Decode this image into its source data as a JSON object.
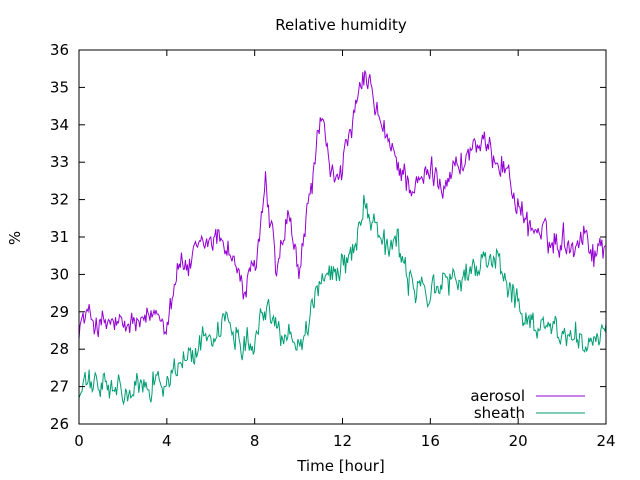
{
  "chart_data": {
    "type": "line",
    "title": "Relative humidity",
    "xlabel": "Time [hour]",
    "ylabel": "%",
    "xlim": [
      0,
      24
    ],
    "ylim": [
      26,
      36
    ],
    "xticks": [
      0,
      4,
      8,
      12,
      16,
      20,
      24
    ],
    "yticks": [
      26,
      27,
      28,
      29,
      30,
      31,
      32,
      33,
      34,
      35,
      36
    ],
    "grid": false,
    "legend_position": "bottom-right",
    "x": [
      0,
      0.5,
      1,
      1.5,
      2,
      2.5,
      3,
      3.5,
      4,
      4.5,
      5,
      5.5,
      6,
      6.5,
      7,
      7.5,
      8,
      8.5,
      9,
      9.5,
      10,
      10.5,
      11,
      11.5,
      12,
      12.5,
      13,
      13.5,
      14,
      14.5,
      15,
      15.5,
      16,
      16.5,
      17,
      17.5,
      18,
      18.5,
      19,
      19.5,
      20,
      20.5,
      21,
      21.5,
      22,
      22.5,
      23,
      23.5,
      24
    ],
    "series": [
      {
        "name": "aerosol",
        "color": "#9400d3",
        "values": [
          28.7,
          28.9,
          28.6,
          28.7,
          28.5,
          28.7,
          28.6,
          29.0,
          28.8,
          30.3,
          30.2,
          30.6,
          30.9,
          31.0,
          30.5,
          29.5,
          30.1,
          32.3,
          30.0,
          31.5,
          30.0,
          32.0,
          34.2,
          32.5,
          33.0,
          34.0,
          35.3,
          34.5,
          33.5,
          33.0,
          32.5,
          32.3,
          32.8,
          32.5,
          32.8,
          33.0,
          33.5,
          33.3,
          33.2,
          32.8,
          31.8,
          31.3,
          31.1,
          30.8,
          31.0,
          30.8,
          31.2,
          30.5,
          31.0
        ]
      },
      {
        "name": "sheath",
        "color": "#009e73",
        "values": [
          26.8,
          27.1,
          27.0,
          26.9,
          26.8,
          26.8,
          27.0,
          27.3,
          27.1,
          27.5,
          27.8,
          28.1,
          28.4,
          28.7,
          28.6,
          28.2,
          28.4,
          29.2,
          28.5,
          28.5,
          28.2,
          28.8,
          30.0,
          29.8,
          30.3,
          30.8,
          31.9,
          31.5,
          30.7,
          30.8,
          29.8,
          29.6,
          29.6,
          29.7,
          29.8,
          29.9,
          30.1,
          30.3,
          30.6,
          29.8,
          29.1,
          28.8,
          28.7,
          28.6,
          28.4,
          28.3,
          28.3,
          28.1,
          28.4
        ]
      }
    ]
  }
}
